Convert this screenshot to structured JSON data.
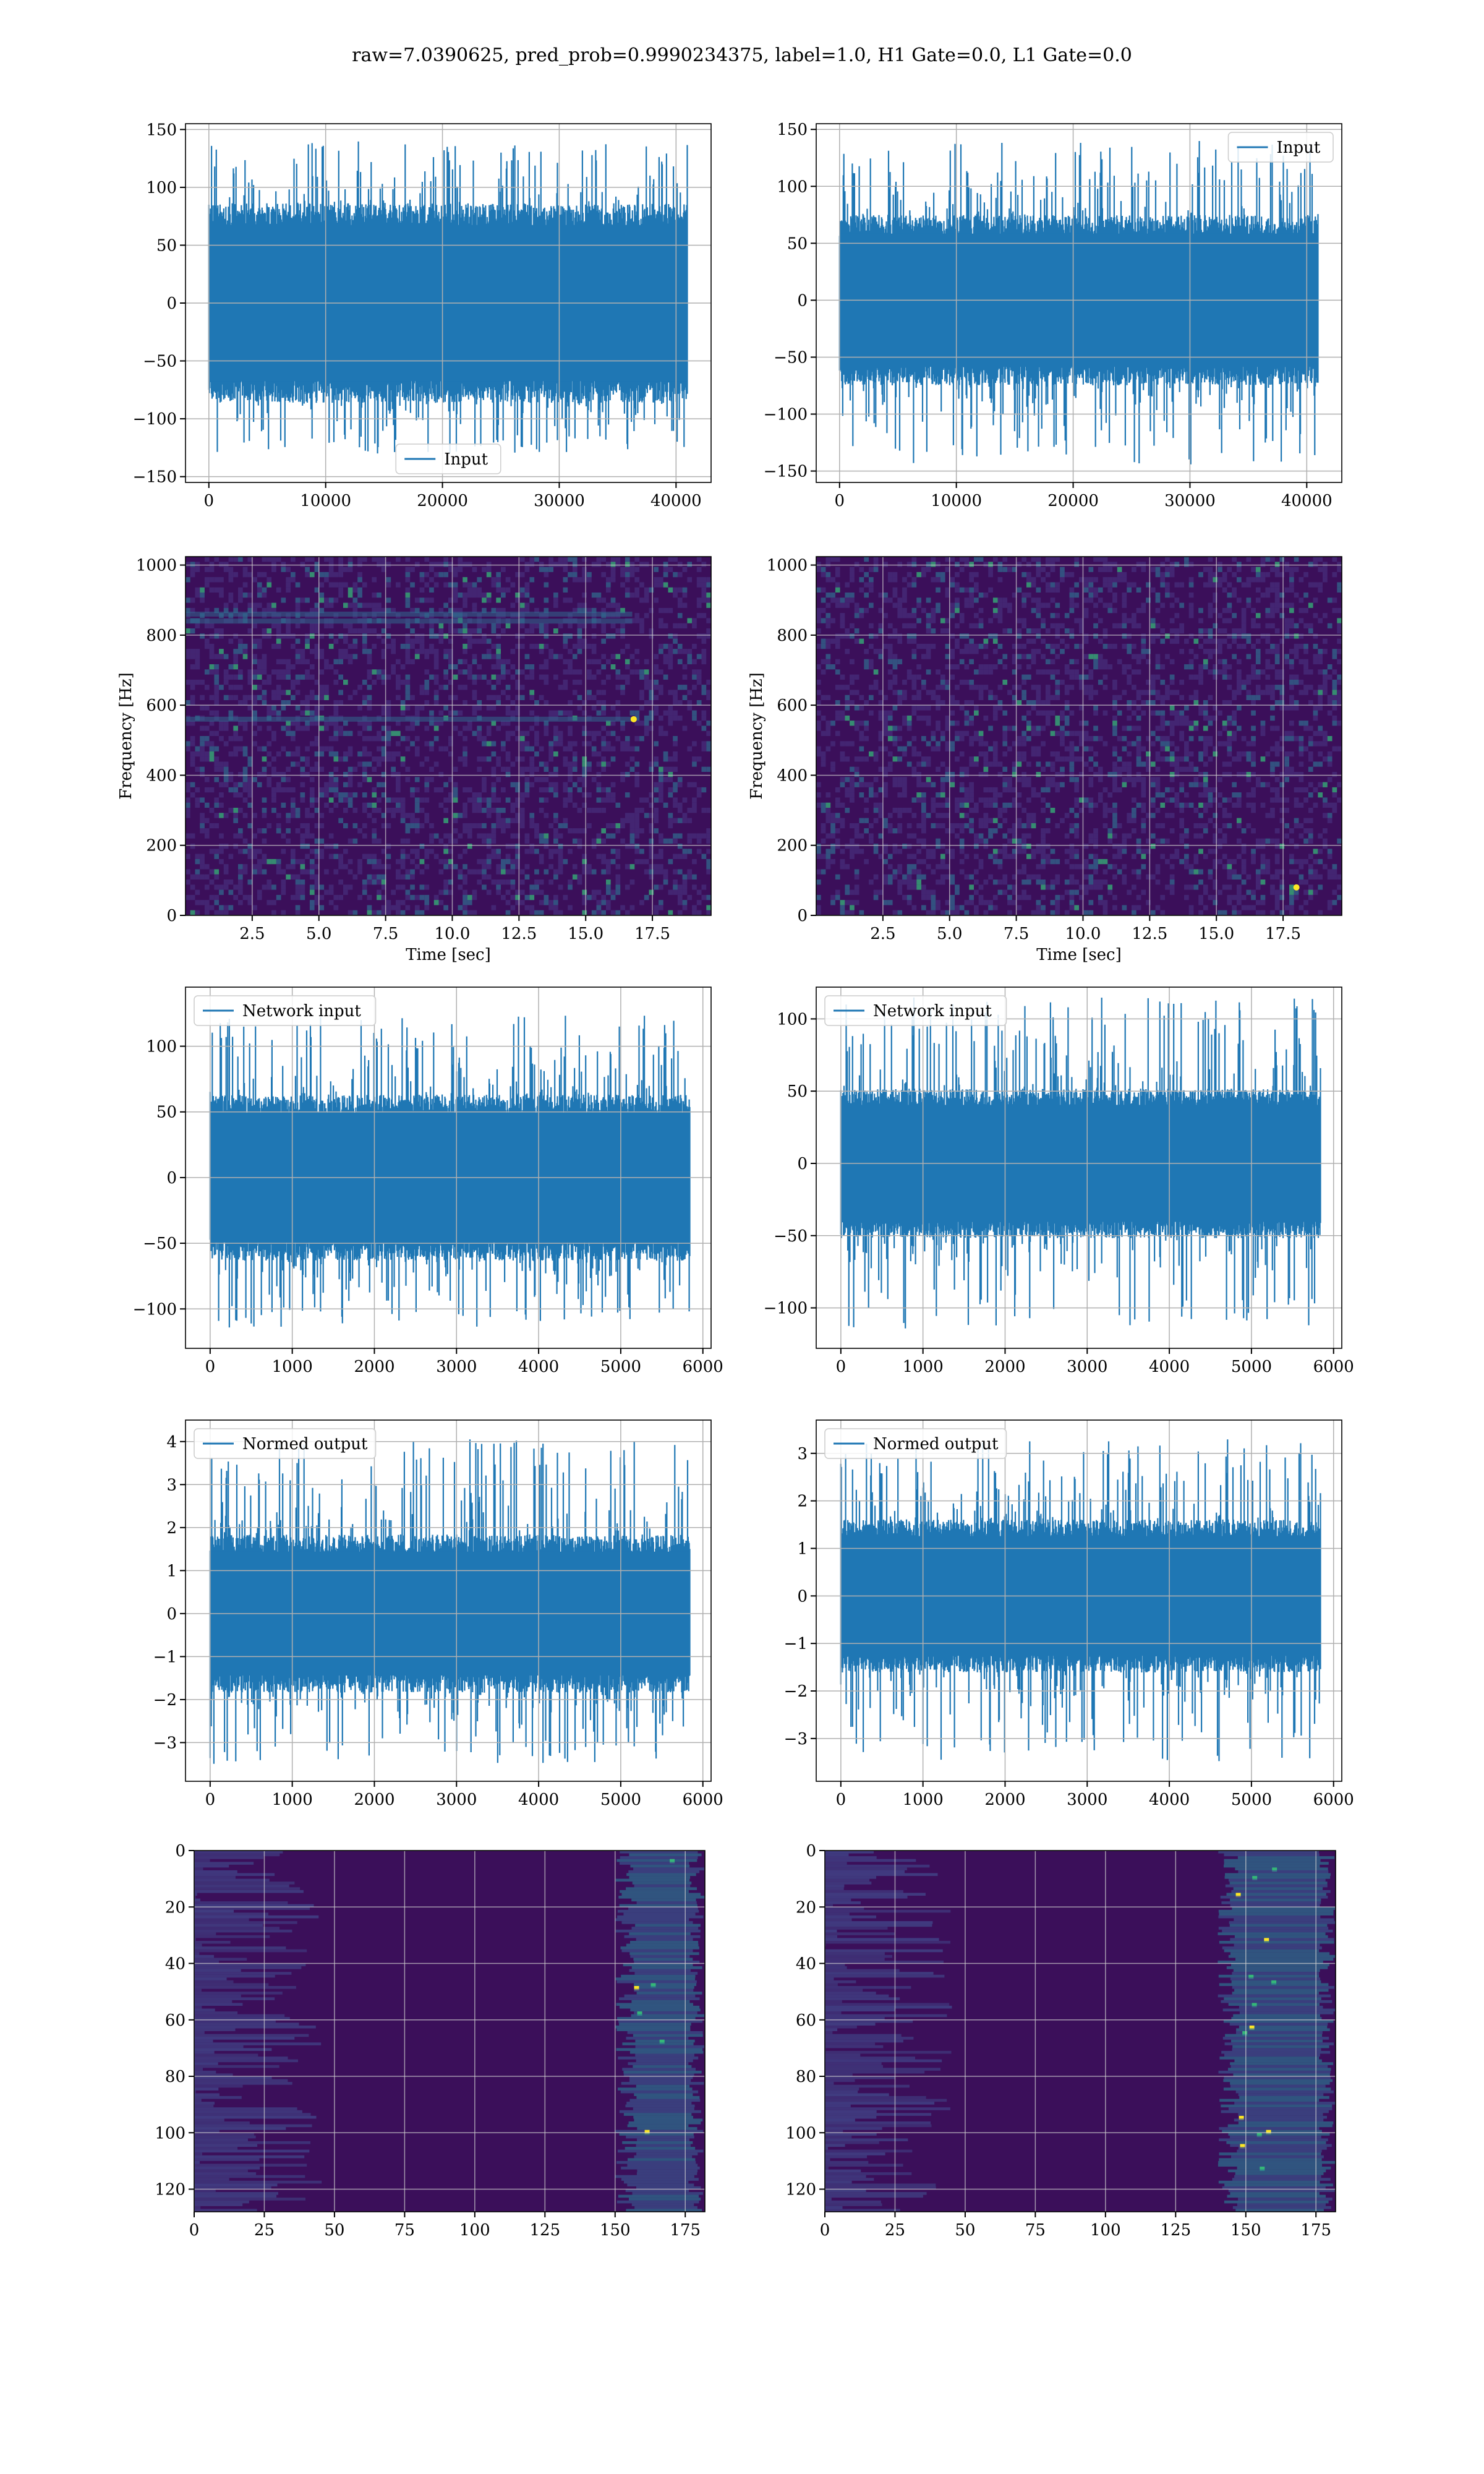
{
  "title": "raw=7.0390625, pred_prob=0.9990234375, label=1.0, H1 Gate=0.0, L1 Gate=0.0",
  "colors": {
    "series": "#1f77b4",
    "grid": "#b0b0b0",
    "spec_bg": "#3b0f5a",
    "spec_mid": "#31688e",
    "spec_high": "#35b779",
    "spec_peak": "#fde725"
  },
  "chart_data": [
    {
      "id": "h1-input",
      "type": "line",
      "series": [
        {
          "name": "Input"
        }
      ],
      "x": [
        0,
        40960
      ],
      "y_envelope": [
        -130,
        140
      ],
      "y_core": [
        -75,
        75
      ],
      "xlim": [
        -2000,
        43000
      ],
      "ylim": [
        -155,
        155
      ],
      "xticks": [
        0,
        10000,
        20000,
        30000,
        40000
      ],
      "xtick_labels": [
        "0",
        "10000",
        "20000",
        "30000",
        "40000"
      ],
      "yticks": [
        -150,
        -100,
        -50,
        0,
        50,
        100,
        150
      ],
      "ytick_labels": [
        "−150",
        "−100",
        "−50",
        "0",
        "50",
        "100",
        "150"
      ],
      "xlabel": "",
      "ylabel": "",
      "legend": "lower center",
      "grid": true
    },
    {
      "id": "l1-input",
      "type": "line",
      "series": [
        {
          "name": "Input"
        }
      ],
      "x": [
        0,
        40960
      ],
      "y_envelope": [
        -145,
        140
      ],
      "y_core": [
        -65,
        65
      ],
      "xlim": [
        -2000,
        43000
      ],
      "ylim": [
        -160,
        155
      ],
      "xticks": [
        0,
        10000,
        20000,
        30000,
        40000
      ],
      "xtick_labels": [
        "0",
        "10000",
        "20000",
        "30000",
        "40000"
      ],
      "yticks": [
        -150,
        -100,
        -50,
        0,
        50,
        100,
        150
      ],
      "ytick_labels": [
        "−150",
        "−100",
        "−50",
        "0",
        "50",
        "100",
        "150"
      ],
      "xlabel": "",
      "ylabel": "",
      "legend": "upper right",
      "grid": true
    },
    {
      "id": "h1-spectrogram",
      "type": "heatmap",
      "xlim": [
        0,
        19.7
      ],
      "ylim": [
        0,
        1024
      ],
      "xticks": [
        2.5,
        5.0,
        7.5,
        10.0,
        12.5,
        15.0,
        17.5
      ],
      "xtick_labels": [
        "2.5",
        "5.0",
        "7.5",
        "10.0",
        "12.5",
        "15.0",
        "17.5"
      ],
      "yticks": [
        0,
        200,
        400,
        600,
        800,
        1000
      ],
      "ytick_labels": [
        "0",
        "200",
        "400",
        "600",
        "800",
        "1000"
      ],
      "xlabel": "Time [sec]",
      "ylabel": "Frequency [Hz]",
      "grid": true,
      "lines_hz": [
        840,
        860,
        560
      ],
      "peak": [
        16.8,
        560
      ]
    },
    {
      "id": "l1-spectrogram",
      "type": "heatmap",
      "xlim": [
        0,
        19.7
      ],
      "ylim": [
        0,
        1024
      ],
      "xticks": [
        2.5,
        5.0,
        7.5,
        10.0,
        12.5,
        15.0,
        17.5
      ],
      "xtick_labels": [
        "2.5",
        "5.0",
        "7.5",
        "10.0",
        "12.5",
        "15.0",
        "17.5"
      ],
      "yticks": [
        0,
        200,
        400,
        600,
        800,
        1000
      ],
      "ytick_labels": [
        "0",
        "200",
        "400",
        "600",
        "800",
        "1000"
      ],
      "xlabel": "Time [sec]",
      "ylabel": "Frequency [Hz]",
      "grid": true,
      "lines_hz": [],
      "peak": [
        18.0,
        80
      ]
    },
    {
      "id": "h1-network-input",
      "type": "line",
      "series": [
        {
          "name": "Network input"
        }
      ],
      "x": [
        0,
        5840
      ],
      "y_envelope": [
        -115,
        125
      ],
      "y_core": [
        -55,
        55
      ],
      "xlim": [
        -300,
        6100
      ],
      "ylim": [
        -130,
        145
      ],
      "xticks": [
        0,
        1000,
        2000,
        3000,
        4000,
        5000,
        6000
      ],
      "xtick_labels": [
        "0",
        "1000",
        "2000",
        "3000",
        "4000",
        "5000",
        "6000"
      ],
      "yticks": [
        -100,
        -50,
        0,
        50,
        100
      ],
      "ytick_labels": [
        "−100",
        "−50",
        "0",
        "50",
        "100"
      ],
      "xlabel": "",
      "ylabel": "",
      "legend": "upper left",
      "grid": true
    },
    {
      "id": "l1-network-input",
      "type": "line",
      "series": [
        {
          "name": "Network input"
        }
      ],
      "x": [
        0,
        5840
      ],
      "y_envelope": [
        -115,
        115
      ],
      "y_core": [
        -45,
        45
      ],
      "xlim": [
        -300,
        6100
      ],
      "ylim": [
        -128,
        122
      ],
      "xticks": [
        0,
        1000,
        2000,
        3000,
        4000,
        5000,
        6000
      ],
      "xtick_labels": [
        "0",
        "1000",
        "2000",
        "3000",
        "4000",
        "5000",
        "6000"
      ],
      "yticks": [
        -100,
        -50,
        0,
        50,
        100
      ],
      "ytick_labels": [
        "−100",
        "−50",
        "0",
        "50",
        "100"
      ],
      "xlabel": "",
      "ylabel": "",
      "legend": "upper left",
      "grid": true
    },
    {
      "id": "h1-normed-output",
      "type": "line",
      "series": [
        {
          "name": "Normed output"
        }
      ],
      "x": [
        0,
        5840
      ],
      "y_envelope": [
        -3.5,
        4.1
      ],
      "y_core": [
        -1.6,
        1.6
      ],
      "xlim": [
        -300,
        6100
      ],
      "ylim": [
        -3.9,
        4.5
      ],
      "xticks": [
        0,
        1000,
        2000,
        3000,
        4000,
        5000,
        6000
      ],
      "xtick_labels": [
        "0",
        "1000",
        "2000",
        "3000",
        "4000",
        "5000",
        "6000"
      ],
      "yticks": [
        -3,
        -2,
        -1,
        0,
        1,
        2,
        3,
        4
      ],
      "ytick_labels": [
        "−3",
        "−2",
        "−1",
        "0",
        "1",
        "2",
        "3",
        "4"
      ],
      "xlabel": "",
      "ylabel": "",
      "legend": "upper left",
      "grid": true
    },
    {
      "id": "l1-normed-output",
      "type": "line",
      "series": [
        {
          "name": "Normed output"
        }
      ],
      "x": [
        0,
        5840
      ],
      "y_envelope": [
        -3.5,
        3.3
      ],
      "y_core": [
        -1.4,
        1.4
      ],
      "xlim": [
        -300,
        6100
      ],
      "ylim": [
        -3.9,
        3.7
      ],
      "xticks": [
        0,
        1000,
        2000,
        3000,
        4000,
        5000,
        6000
      ],
      "xtick_labels": [
        "0",
        "1000",
        "2000",
        "3000",
        "4000",
        "5000",
        "6000"
      ],
      "yticks": [
        -3,
        -2,
        -1,
        0,
        1,
        2,
        3
      ],
      "ytick_labels": [
        "−3",
        "−2",
        "−1",
        "0",
        "1",
        "2",
        "3"
      ],
      "xlabel": "",
      "ylabel": "",
      "legend": "upper left",
      "grid": true
    },
    {
      "id": "h1-feature-map",
      "type": "heatmap",
      "xlim": [
        0,
        182
      ],
      "ylim": [
        128,
        0
      ],
      "y_inverted": true,
      "xticks": [
        0,
        25,
        50,
        75,
        100,
        125,
        150,
        175
      ],
      "xtick_labels": [
        "0",
        "25",
        "50",
        "75",
        "100",
        "125",
        "150",
        "175"
      ],
      "yticks": [
        0,
        20,
        40,
        60,
        80,
        100,
        120
      ],
      "ytick_labels": [
        "0",
        "20",
        "40",
        "60",
        "80",
        "100",
        "120"
      ],
      "xlabel": "",
      "ylabel": "",
      "grid": true,
      "active_band": [
        150,
        182
      ]
    },
    {
      "id": "l1-feature-map",
      "type": "heatmap",
      "xlim": [
        0,
        182
      ],
      "ylim": [
        128,
        0
      ],
      "y_inverted": true,
      "xticks": [
        0,
        25,
        50,
        75,
        100,
        125,
        150,
        175
      ],
      "xtick_labels": [
        "0",
        "25",
        "50",
        "75",
        "100",
        "125",
        "150",
        "175"
      ],
      "yticks": [
        0,
        20,
        40,
        60,
        80,
        100,
        120
      ],
      "ytick_labels": [
        "0",
        "20",
        "40",
        "60",
        "80",
        "100",
        "120"
      ],
      "xlabel": "",
      "ylabel": "",
      "grid": true,
      "active_band": [
        140,
        182
      ]
    }
  ]
}
